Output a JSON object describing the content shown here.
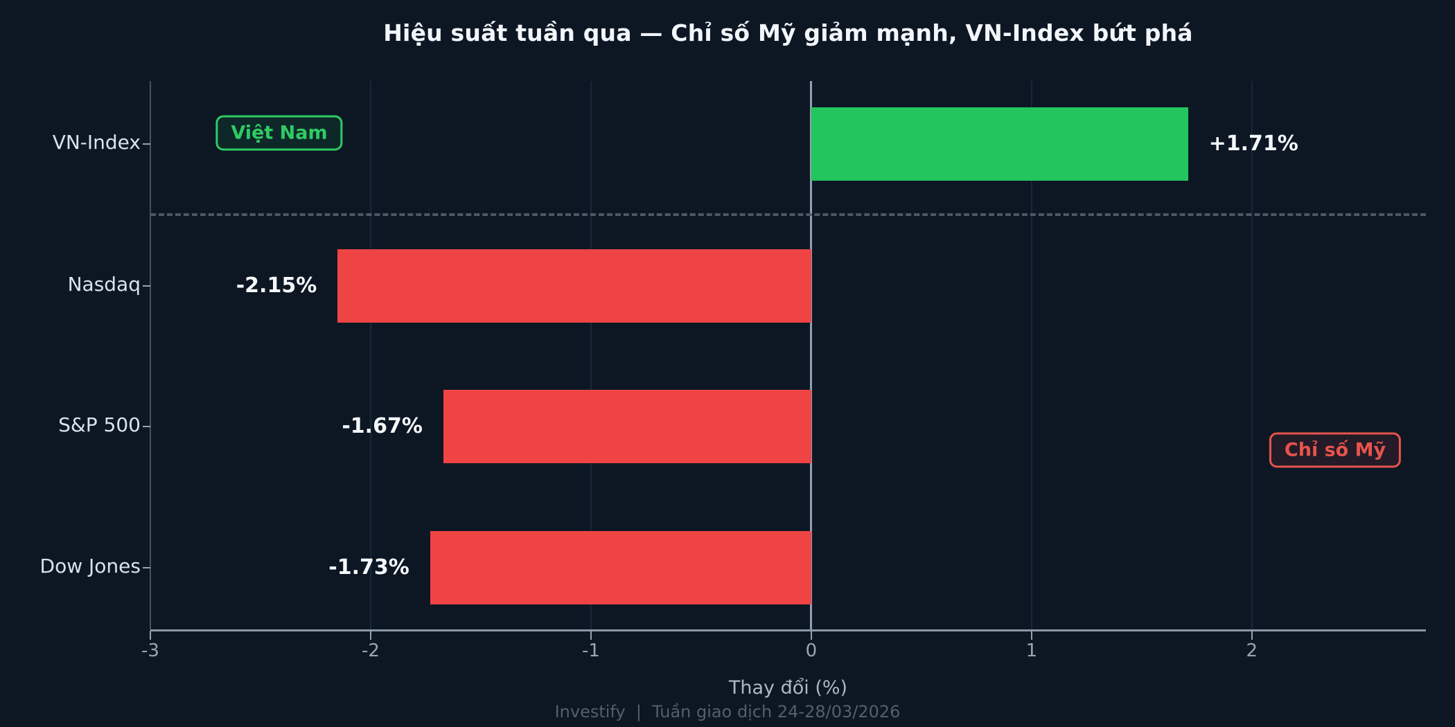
{
  "header": {
    "title": "Hiệu suất tuần qua — Chỉ số Mỹ giảm mạnh, VN-Index bứt phá"
  },
  "chart_data": {
    "type": "bar",
    "orientation": "horizontal",
    "title": "Hiệu suất tuần qua — Chỉ số Mỹ giảm mạnh, VN-Index bứt phá",
    "categories": [
      "VN-Index",
      "Nasdaq",
      "S&P 500",
      "Dow Jones"
    ],
    "values": [
      1.71,
      -2.15,
      -1.67,
      -1.73
    ],
    "value_labels": [
      "+1.71%",
      "-2.15%",
      "-1.67%",
      "-1.73%"
    ],
    "bar_colors": [
      "#22c55e",
      "#ef4444",
      "#ef4444",
      "#ef4444"
    ],
    "xlabel": "Thay đổi (%)",
    "xticks": [
      -3,
      -2,
      -1,
      0,
      1,
      2
    ],
    "xtick_labels": [
      "-3",
      "-2",
      "-1",
      "0",
      "1",
      "2"
    ],
    "xlim": [
      -3.0,
      2.79
    ],
    "grid": "vertical-major",
    "zero_line": true,
    "separator_between": [
      "VN-Index",
      "Nasdaq"
    ],
    "annotations": [
      {
        "label": "Việt Nam",
        "text_color": "#2ecc63",
        "border_color": "#2ecc63",
        "fill": "rgba(34,197,94,0.10)"
      },
      {
        "label": "Chỉ số Mỹ",
        "text_color": "#e8534d",
        "border_color": "#e8534d",
        "fill": "rgba(239,68,68,0.10)"
      }
    ]
  },
  "footer": {
    "text": "Investify  |  Tuần giao dịch 24-28/03/2026"
  },
  "colors": {
    "background": "#0d1724",
    "positive": "#22c55e",
    "negative": "#ef4444",
    "gridline": "#15293d",
    "zero_line": "#8fa2b3",
    "title_text": "#f2f6fa",
    "category_text": "#dbe3ea",
    "tick_text": "#9aa6b2",
    "footer_text": "#555f6a"
  }
}
